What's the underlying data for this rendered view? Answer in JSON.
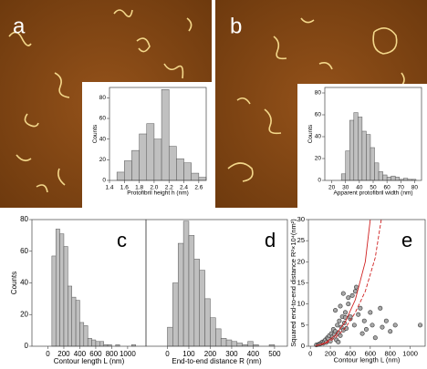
{
  "images": [
    {
      "label": "a"
    },
    {
      "label": "b"
    }
  ],
  "chart_data": [
    {
      "type": "histogram",
      "xlabel": "Protofibril height h (nm)",
      "ylabel": "Counts",
      "bins": [
        1.5,
        1.6,
        1.7,
        1.8,
        1.9,
        2.0,
        2.1,
        2.2,
        2.3,
        2.4,
        2.5,
        2.6,
        2.7
      ],
      "values": [
        8,
        19,
        29,
        45,
        55,
        40,
        88,
        33,
        21,
        17,
        7,
        3
      ],
      "color": "#c0c0c0",
      "xlim": [
        1.4,
        2.7
      ],
      "xticks": [
        1.4,
        1.6,
        1.8,
        {
          "value": 2,
          "label": "2.0"
        },
        2.2,
        2.4,
        2.6
      ],
      "ylim": [
        0,
        90
      ],
      "yticks": [
        0,
        20,
        40,
        60,
        80
      ]
    },
    {
      "type": "histogram",
      "xlabel": "Apparent protofibril width (nm)",
      "ylabel": "Counts",
      "bins": [
        27,
        30,
        33,
        36,
        39,
        42,
        45,
        48,
        51,
        54,
        57,
        60,
        63,
        66,
        69,
        72,
        75,
        78,
        81
      ],
      "values": [
        6,
        27,
        55,
        62,
        58,
        45,
        42,
        30,
        16,
        8,
        5,
        3,
        4,
        3,
        1,
        2,
        1,
        1
      ],
      "color": "#c0c0c0",
      "xlim": [
        15,
        85
      ],
      "xticks": [
        20,
        30,
        40,
        50,
        60,
        70,
        80
      ],
      "ylim": [
        0,
        85
      ],
      "yticks": [
        0,
        20,
        40,
        60,
        80
      ]
    },
    {
      "type": "histogram",
      "label": "c",
      "xlabel": "Contour length L (nm)",
      "ylabel": "Counts",
      "bins": [
        50,
        100,
        150,
        200,
        250,
        300,
        350,
        400,
        450,
        500,
        550,
        600,
        650,
        700,
        750,
        800,
        850,
        900,
        950,
        1000,
        1050,
        1100
      ],
      "values": [
        57,
        74,
        71,
        63,
        38,
        31,
        29,
        15,
        13,
        5,
        4,
        3,
        3,
        1,
        1,
        0,
        1,
        0,
        0,
        0,
        1
      ],
      "color": "#c0c0c0",
      "xlim": [
        -200,
        1230
      ],
      "xticks": [
        0,
        200,
        400,
        600,
        800,
        1000
      ],
      "ylim": [
        0,
        80
      ],
      "yticks": [
        0,
        20,
        40,
        60,
        80
      ]
    },
    {
      "type": "histogram",
      "label": "d",
      "xlabel": "End-to-end distance R (nm)",
      "bins": [
        0,
        25,
        50,
        75,
        100,
        125,
        150,
        175,
        200,
        225,
        250,
        275,
        300,
        325,
        350,
        375,
        400,
        425,
        450,
        475,
        500
      ],
      "values": [
        12,
        40,
        65,
        79,
        70,
        55,
        48,
        30,
        18,
        11,
        5,
        4,
        3,
        2,
        1,
        3,
        1,
        0,
        0,
        1
      ],
      "color": "#c0c0c0",
      "xlim": [
        -100,
        560
      ],
      "xticks": [
        0,
        100,
        200,
        300,
        400,
        500
      ],
      "ylim": [
        0,
        80
      ]
    },
    {
      "type": "scatter",
      "label": "e",
      "xlabel": "Contour length L (nm)",
      "ylabel": "Squared end-to-end distance R²×10⁴(nm²)",
      "xlim": [
        -20,
        1150
      ],
      "xticks": [
        0,
        200,
        400,
        600,
        800,
        1000
      ],
      "ylim": [
        0,
        30
      ],
      "yticks": [
        0,
        5,
        10,
        15,
        20,
        25,
        30
      ],
      "series": [
        {
          "style": "points",
          "color": "#a8a8a8",
          "x": [
            60,
            80,
            90,
            100,
            110,
            120,
            130,
            140,
            150,
            160,
            170,
            180,
            190,
            200,
            210,
            220,
            230,
            240,
            250,
            260,
            270,
            280,
            290,
            300,
            310,
            320,
            330,
            340,
            350,
            360,
            380,
            400,
            420,
            440,
            460,
            480,
            500,
            520,
            540,
            560,
            600,
            620,
            650,
            700,
            720,
            760,
            800,
            850,
            1100,
            250,
            300,
            350,
            400,
            450,
            380,
            330,
            280
          ],
          "values": [
            0.3,
            0.4,
            0.5,
            0.6,
            0.8,
            1.0,
            0.7,
            1.2,
            1.5,
            0.9,
            2.0,
            1.8,
            2.5,
            1.2,
            3.0,
            2.2,
            4.0,
            2.8,
            3.5,
            1.5,
            5.0,
            3.2,
            6.0,
            2.5,
            4.5,
            7.0,
            3.8,
            5.5,
            8.0,
            4.2,
            10.0,
            6.5,
            12.0,
            5.0,
            14.0,
            7.5,
            9.0,
            3.0,
            6.0,
            4.0,
            8.0,
            5.0,
            2.0,
            9.0,
            4.5,
            6.0,
            3.5,
            5.0,
            5.0,
            8.5,
            9.5,
            6.8,
            7.0,
            13.0,
            11.5,
            12.5,
            1.0
          ]
        },
        {
          "style": "solid",
          "color": "#d02020",
          "x": [
            50,
            150,
            250,
            350,
            450,
            550,
            600
          ],
          "values": [
            0.1,
            0.8,
            2.6,
            5.8,
            11,
            20,
            30
          ]
        },
        {
          "style": "dashed",
          "color": "#d02020",
          "x": [
            50,
            150,
            250,
            350,
            450,
            550,
            650,
            710
          ],
          "values": [
            0.1,
            0.6,
            2.0,
            4.3,
            8,
            13,
            21,
            30
          ]
        }
      ]
    }
  ]
}
